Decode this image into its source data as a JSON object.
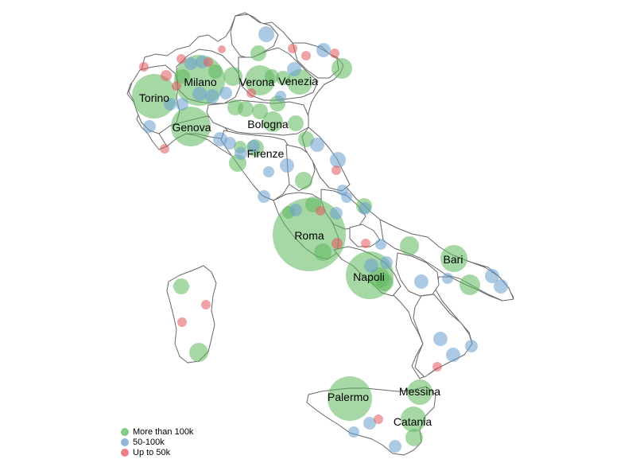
{
  "colors": {
    "large": "#5cb85c",
    "medium": "#6a9fd0",
    "small": "#e4575f"
  },
  "legend": [
    {
      "label": "More than 100k",
      "size": "large"
    },
    {
      "label": "50-100k",
      "size": "medium"
    },
    {
      "label": "Up to 50k",
      "size": "small"
    }
  ],
  "labeled_cities": [
    "Torino",
    "Milano",
    "Verona",
    "Venezia",
    "Genova",
    "Bologna",
    "Firenze",
    "Roma",
    "Napoli",
    "Bari",
    "Palermo",
    "Messina",
    "Catania"
  ]
}
